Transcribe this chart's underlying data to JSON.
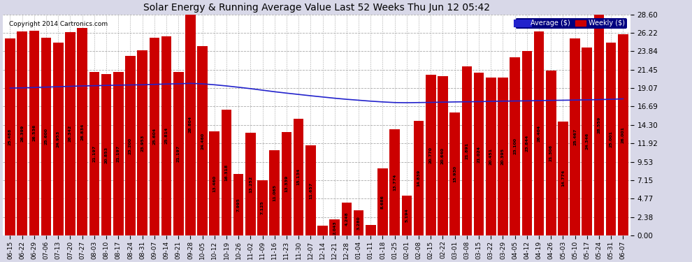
{
  "title": "Solar Energy & Running Average Value Last 52 Weeks Thu Jun 12 05:42",
  "copyright": "Copyright 2014 Cartronics.com",
  "background_color": "#d8d8e8",
  "plot_bg_color": "#ffffff",
  "bar_color": "#cc0000",
  "avg_line_color": "#2222cc",
  "ylim": [
    0,
    28.6
  ],
  "yticks": [
    0.0,
    2.38,
    4.77,
    7.15,
    9.53,
    11.92,
    14.3,
    16.69,
    19.07,
    21.45,
    23.84,
    26.22,
    28.6
  ],
  "categories": [
    "06-15",
    "06-22",
    "06-29",
    "07-06",
    "07-13",
    "07-20",
    "07-27",
    "08-03",
    "08-10",
    "08-17",
    "08-24",
    "08-31",
    "09-07",
    "09-14",
    "09-21",
    "09-28",
    "10-05",
    "10-12",
    "10-19",
    "10-26",
    "11-02",
    "11-09",
    "11-16",
    "11-23",
    "11-30",
    "12-07",
    "12-14",
    "12-21",
    "12-28",
    "01-04",
    "01-11",
    "01-18",
    "01-25",
    "02-01",
    "02-08",
    "02-15",
    "02-22",
    "03-01",
    "03-08",
    "03-15",
    "03-22",
    "03-29",
    "04-05",
    "04-12",
    "04-19",
    "04-26",
    "05-03",
    "05-10",
    "05-17",
    "05-24",
    "05-31",
    "06-07"
  ],
  "values": [
    25.488,
    26.399,
    26.536,
    25.6,
    24.953,
    26.342,
    26.834,
    21.197,
    20.853,
    21.197,
    23.2,
    23.953,
    25.604,
    25.814,
    21.197,
    28.804,
    24.46,
    13.46,
    16.318,
    7.995,
    13.252,
    7.125,
    11.065,
    13.339,
    15.134,
    11.657,
    1.236,
    2.043,
    4.248,
    3.28,
    1.392,
    8.686,
    13.774,
    5.194,
    14.839,
    20.77,
    20.64,
    15.93,
    21.891,
    21.024,
    20.451,
    20.395,
    23.1,
    23.844,
    26.404,
    21.306,
    14.774,
    25.467,
    24.346,
    28.559,
    25.001,
    26.001
  ],
  "avg_values": [
    19.07,
    19.1,
    19.15,
    19.2,
    19.25,
    19.3,
    19.35,
    19.38,
    19.42,
    19.45,
    19.48,
    19.5,
    19.55,
    19.6,
    19.63,
    19.68,
    19.62,
    19.5,
    19.35,
    19.18,
    19.0,
    18.8,
    18.6,
    18.42,
    18.25,
    18.08,
    17.92,
    17.76,
    17.62,
    17.5,
    17.38,
    17.28,
    17.2,
    17.18,
    17.2,
    17.22,
    17.25,
    17.28,
    17.3,
    17.32,
    17.35,
    17.38,
    17.4,
    17.42,
    17.45,
    17.48,
    17.5,
    17.52,
    17.55,
    17.58,
    17.62,
    17.68
  ]
}
